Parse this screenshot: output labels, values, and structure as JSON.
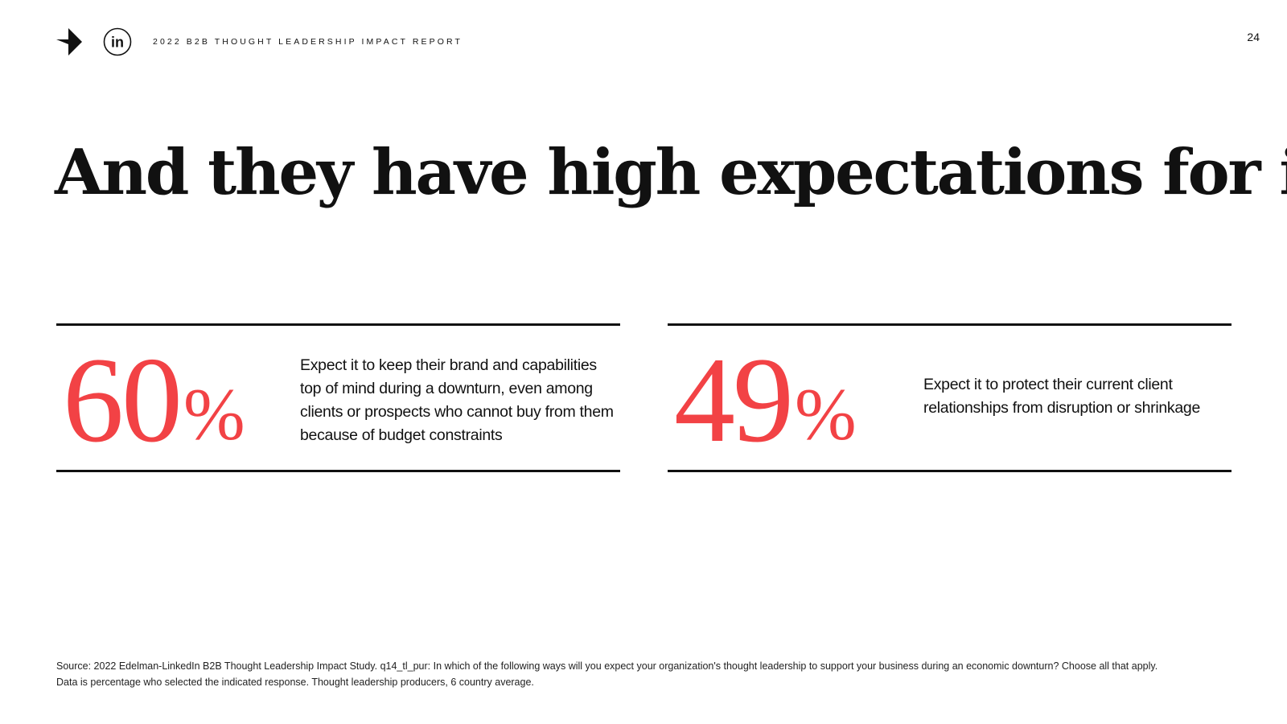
{
  "header": {
    "report_title": "2022 B2B THOUGHT LEADERSHIP IMPACT REPORT",
    "page_number": "24",
    "brand_icon": "arrow-logo-icon",
    "linkedin_icon": "linkedin-icon",
    "linkedin_text": "in"
  },
  "headline": "And they have high expectations for it.",
  "stats": [
    {
      "value": "60",
      "unit": "%",
      "description": "Expect it to keep their brand and capabilities top of mind during a downturn, even among clients or prospects who cannot buy from them because of budget constraints"
    },
    {
      "value": "49",
      "unit": "%",
      "description": "Expect it to protect their current client relationships from disruption or shrinkage"
    }
  ],
  "footnote": {
    "line1": "Source: 2022 Edelman-LinkedIn B2B Thought Leadership Impact Study. q14_tl_pur: In which of the following ways will you expect your organization's thought leadership to support your business during an economic downturn? Choose all that apply.",
    "line2": "Data is percentage who selected the indicated response. Thought leadership producers, 6 country average."
  },
  "colors": {
    "accent": "#f24245",
    "text": "#111111",
    "background": "#ffffff"
  }
}
